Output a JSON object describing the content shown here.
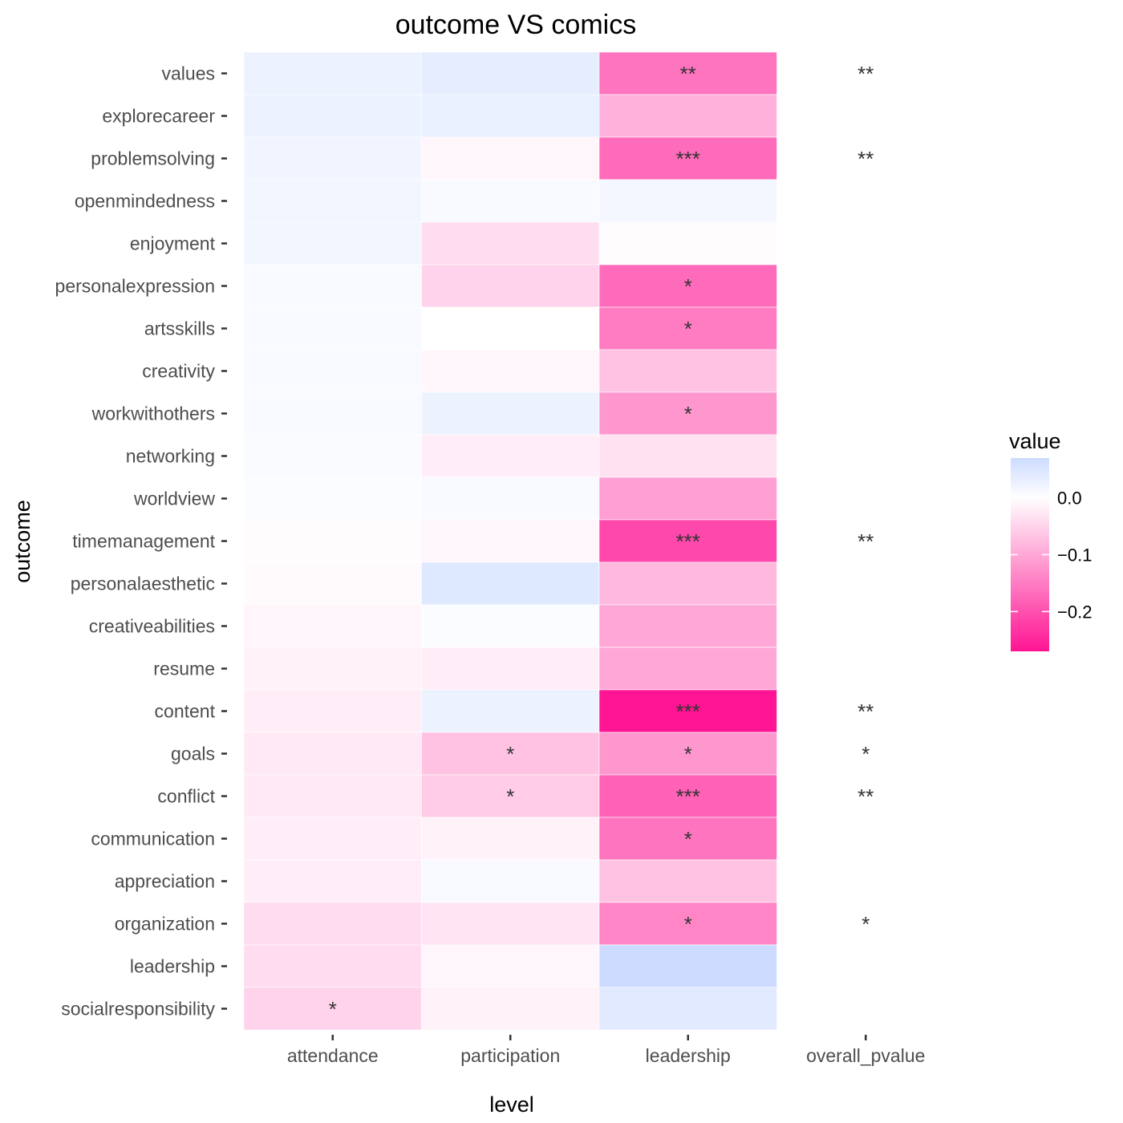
{
  "chart_data": {
    "type": "heatmap",
    "title": "outcome VS comics",
    "xlabel": "level",
    "ylabel": "outcome",
    "x_categories": [
      "attendance",
      "participation",
      "leadership",
      "overall_pvalue"
    ],
    "y_categories": [
      "values",
      "explorecareer",
      "problemsolving",
      "openmindedness",
      "enjoyment",
      "personalexpression",
      "artsskills",
      "creativity",
      "workwithothers",
      "networking",
      "worldview",
      "timemanagement",
      "personalaesthetic",
      "creativeabilities",
      "resume",
      "content",
      "goals",
      "conflict",
      "communication",
      "appreciation",
      "organization",
      "leadership",
      "socialresponsibility"
    ],
    "values": [
      [
        0.025,
        0.035,
        -0.16,
        null
      ],
      [
        0.025,
        0.03,
        -0.09,
        null
      ],
      [
        0.02,
        -0.01,
        -0.17,
        null
      ],
      [
        0.018,
        0.01,
        0.015,
        null
      ],
      [
        0.018,
        -0.04,
        -0.003,
        null
      ],
      [
        0.01,
        -0.05,
        -0.17,
        null
      ],
      [
        0.01,
        0.0,
        -0.15,
        null
      ],
      [
        0.01,
        -0.01,
        -0.07,
        null
      ],
      [
        0.01,
        0.025,
        -0.12,
        null
      ],
      [
        0.008,
        -0.02,
        -0.035,
        null
      ],
      [
        0.005,
        0.01,
        -0.11,
        null
      ],
      [
        -0.003,
        -0.01,
        -0.21,
        null
      ],
      [
        -0.005,
        0.045,
        -0.08,
        null
      ],
      [
        -0.012,
        0.005,
        -0.1,
        null
      ],
      [
        -0.015,
        -0.02,
        -0.1,
        null
      ],
      [
        -0.02,
        0.025,
        -0.27,
        null
      ],
      [
        -0.025,
        -0.07,
        -0.12,
        null
      ],
      [
        -0.025,
        -0.06,
        -0.18,
        null
      ],
      [
        -0.02,
        -0.015,
        -0.16,
        null
      ],
      [
        -0.02,
        0.01,
        -0.07,
        null
      ],
      [
        -0.04,
        -0.03,
        -0.14,
        null
      ],
      [
        -0.04,
        -0.01,
        0.07,
        null
      ],
      [
        -0.05,
        -0.015,
        0.04,
        null
      ]
    ],
    "significance": [
      [
        "",
        "",
        "**",
        "**"
      ],
      [
        "",
        "",
        "",
        ""
      ],
      [
        "",
        "",
        "***",
        "**"
      ],
      [
        "",
        "",
        "",
        ""
      ],
      [
        "",
        "",
        "",
        ""
      ],
      [
        "",
        "",
        "*",
        ""
      ],
      [
        "",
        "",
        "*",
        ""
      ],
      [
        "",
        "",
        "",
        ""
      ],
      [
        "",
        "",
        "*",
        ""
      ],
      [
        "",
        "",
        "",
        ""
      ],
      [
        "",
        "",
        "",
        ""
      ],
      [
        "",
        "",
        "***",
        "**"
      ],
      [
        "",
        "",
        "",
        ""
      ],
      [
        "",
        "",
        "",
        ""
      ],
      [
        "",
        "",
        "",
        ""
      ],
      [
        "",
        "",
        "***",
        "**"
      ],
      [
        "",
        "*",
        "*",
        "*"
      ],
      [
        "",
        "*",
        "***",
        "**"
      ],
      [
        "",
        "",
        "*",
        ""
      ],
      [
        "",
        "",
        "",
        ""
      ],
      [
        "",
        "",
        "*",
        "*"
      ],
      [
        "",
        "",
        "",
        ""
      ],
      [
        "*",
        "",
        "",
        ""
      ]
    ],
    "color_scale": {
      "title": "value",
      "low_color": "#FF1493",
      "mid_color": "#FFFFFF",
      "high_color": "#CCDBFF",
      "min": -0.27,
      "max": 0.07,
      "ticks": [
        0.0,
        -0.1,
        -0.2
      ],
      "tick_labels": [
        "0.0",
        "−0.1",
        "−0.2"
      ]
    },
    "legend_position": "right",
    "grid": false
  }
}
